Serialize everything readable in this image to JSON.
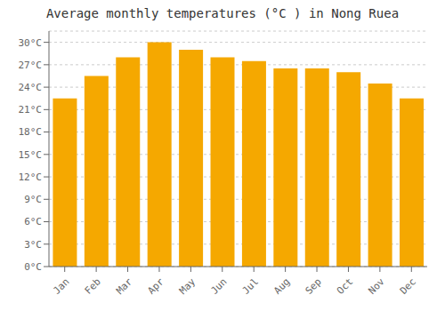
{
  "chart_data": {
    "type": "bar",
    "title": "Average monthly temperatures (°C ) in Nong Ruea",
    "categories": [
      "Jan",
      "Feb",
      "Mar",
      "Apr",
      "May",
      "Jun",
      "Jul",
      "Aug",
      "Sep",
      "Oct",
      "Nov",
      "Dec"
    ],
    "values": [
      22.5,
      25.5,
      28.0,
      30.0,
      29.0,
      28.0,
      27.5,
      26.5,
      26.5,
      26.0,
      24.5,
      22.5
    ],
    "color": "#F5A800",
    "ylim": [
      0,
      31.5
    ],
    "yticks": [
      {
        "value": 0,
        "label": "0°C"
      },
      {
        "value": 3,
        "label": "3°C"
      },
      {
        "value": 6,
        "label": "6°C"
      },
      {
        "value": 9,
        "label": "9°C"
      },
      {
        "value": 12,
        "label": "12°C"
      },
      {
        "value": 15,
        "label": "15°C"
      },
      {
        "value": 18,
        "label": "18°C"
      },
      {
        "value": 21,
        "label": "21°C"
      },
      {
        "value": 24,
        "label": "24°C"
      },
      {
        "value": 27,
        "label": "27°C"
      },
      {
        "value": 30,
        "label": "30°C"
      }
    ],
    "grid": true
  }
}
